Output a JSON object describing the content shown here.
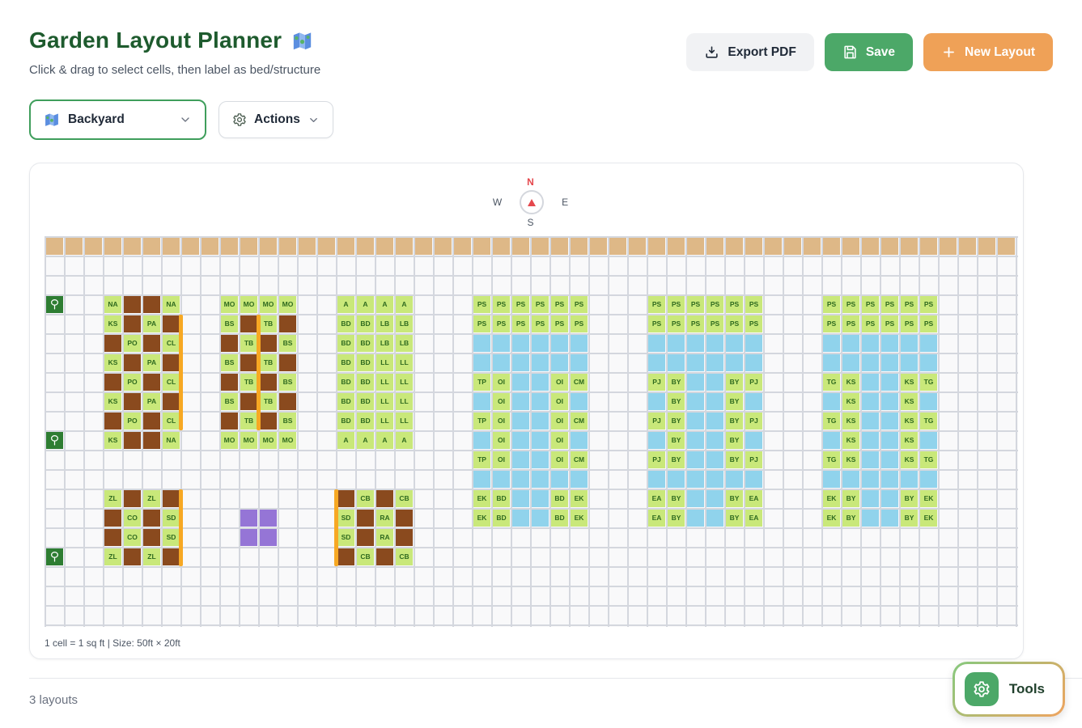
{
  "header": {
    "title": "Garden Layout Planner",
    "subtitle": "Click & drag to select cells, then label as bed/structure",
    "buttons": {
      "export_pdf": "Export PDF",
      "save": "Save",
      "new_layout": "New Layout"
    }
  },
  "toolbar": {
    "layout_selected": "Backyard",
    "actions_label": "Actions"
  },
  "compass": {
    "n": "N",
    "s": "S",
    "e": "E",
    "w": "W"
  },
  "canvas": {
    "footer": "1 cell = 1 sq ft | Size: 50ft × 20ft"
  },
  "status": {
    "layouts_count": "3 layouts"
  },
  "tools": {
    "label": "Tools"
  },
  "icons": {
    "title": "map-emoji",
    "export_pdf": "download",
    "save": "floppy-disk",
    "new_layout": "plus",
    "layout_select": "map-emoji",
    "actions": "gear",
    "tools": "gear",
    "tree_cell": "tree",
    "compass_needle": "red-triangle-up"
  },
  "colors": {
    "bed": "#c9e87a",
    "label": "#2f6a1f",
    "soil": "#8a4a1e",
    "water": "#90d3ec",
    "structure": "#9575d6",
    "soilband": "#deb887",
    "path": "#f7a823",
    "tree": "#2e7d32",
    "gridline": "#d4d7de",
    "accent_green": "#4ca868",
    "accent_orange": "#efa157"
  },
  "grid": {
    "cols": 50,
    "rows": 20,
    "soil_row": 0,
    "legend": {
      "#": "soil",
      "~": "water",
      "*": "structure",
      "text": "bed label"
    },
    "trees": [
      [
        0,
        3
      ],
      [
        0,
        10
      ],
      [
        0,
        16
      ]
    ],
    "clusters": [
      {
        "name": "bed-northwest",
        "col": 3,
        "row": 3,
        "rows": [
          [
            "NA",
            "#",
            "#",
            "NA"
          ],
          [
            "KS",
            "#",
            "PA",
            "#"
          ],
          [
            "#",
            "PO",
            "#",
            "CL"
          ],
          [
            "KS",
            "#",
            "PA",
            "#"
          ],
          [
            "#",
            "PO",
            "#",
            "CL"
          ],
          [
            "KS",
            "#",
            "PA",
            "#"
          ],
          [
            "#",
            "PO",
            "#",
            "CL"
          ],
          [
            "KS",
            "#",
            "#",
            "NA"
          ]
        ]
      },
      {
        "name": "bed-north-2",
        "col": 9,
        "row": 3,
        "rows": [
          [
            "MO",
            "MO",
            "MO",
            "MO"
          ],
          [
            "BS",
            "#",
            "TB",
            "#"
          ],
          [
            "#",
            "TB",
            "#",
            "BS"
          ],
          [
            "BS",
            "#",
            "TB",
            "#"
          ],
          [
            "#",
            "TB",
            "#",
            "BS"
          ],
          [
            "BS",
            "#",
            "TB",
            "#"
          ],
          [
            "#",
            "TB",
            "#",
            "BS"
          ],
          [
            "MO",
            "MO",
            "MO",
            "MO"
          ]
        ]
      },
      {
        "name": "bed-north-3",
        "col": 15,
        "row": 3,
        "rows": [
          [
            "A",
            "A",
            "A",
            "A"
          ],
          [
            "BD",
            "BD",
            "LB",
            "LB"
          ],
          [
            "BD",
            "BD",
            "LB",
            "LB"
          ],
          [
            "BD",
            "BD",
            "LL",
            "LL"
          ],
          [
            "BD",
            "BD",
            "LL",
            "LL"
          ],
          [
            "BD",
            "BD",
            "LL",
            "LL"
          ],
          [
            "BD",
            "BD",
            "LL",
            "LL"
          ],
          [
            "A",
            "A",
            "A",
            "A"
          ]
        ]
      },
      {
        "name": "bed-east-1",
        "col": 22,
        "row": 3,
        "rows": [
          [
            "PS",
            "PS",
            "PS",
            "PS",
            "PS",
            "PS"
          ],
          [
            "PS",
            "PS",
            "PS",
            "PS",
            "PS",
            "PS"
          ],
          [
            "~",
            "~",
            "~",
            "~",
            "~",
            "~"
          ],
          [
            "~",
            "~",
            "~",
            "~",
            "~",
            "~"
          ],
          [
            "TP",
            "OI",
            "~",
            "~",
            "OI",
            "CM"
          ],
          [
            "~",
            "OI",
            "~",
            "~",
            "OI",
            "~"
          ],
          [
            "TP",
            "OI",
            "~",
            "~",
            "OI",
            "CM"
          ],
          [
            "~",
            "OI",
            "~",
            "~",
            "OI",
            "~"
          ],
          [
            "TP",
            "OI",
            "~",
            "~",
            "OI",
            "CM"
          ],
          [
            "~",
            "~",
            "~",
            "~",
            "~",
            "~"
          ],
          [
            "EK",
            "BD",
            "~",
            "~",
            "BD",
            "EK"
          ],
          [
            "EK",
            "BD",
            "~",
            "~",
            "BD",
            "EK"
          ]
        ]
      },
      {
        "name": "bed-east-2",
        "col": 31,
        "row": 3,
        "rows": [
          [
            "PS",
            "PS",
            "PS",
            "PS",
            "PS",
            "PS"
          ],
          [
            "PS",
            "PS",
            "PS",
            "PS",
            "PS",
            "PS"
          ],
          [
            "~",
            "~",
            "~",
            "~",
            "~",
            "~"
          ],
          [
            "~",
            "~",
            "~",
            "~",
            "~",
            "~"
          ],
          [
            "PJ",
            "BY",
            "~",
            "~",
            "BY",
            "PJ"
          ],
          [
            "~",
            "BY",
            "~",
            "~",
            "BY",
            "~"
          ],
          [
            "PJ",
            "BY",
            "~",
            "~",
            "BY",
            "PJ"
          ],
          [
            "~",
            "BY",
            "~",
            "~",
            "BY",
            "~"
          ],
          [
            "PJ",
            "BY",
            "~",
            "~",
            "BY",
            "PJ"
          ],
          [
            "~",
            "~",
            "~",
            "~",
            "~",
            "~"
          ],
          [
            "EA",
            "BY",
            "~",
            "~",
            "BY",
            "EA"
          ],
          [
            "EA",
            "BY",
            "~",
            "~",
            "BY",
            "EA"
          ]
        ]
      },
      {
        "name": "bed-east-3",
        "col": 40,
        "row": 3,
        "rows": [
          [
            "PS",
            "PS",
            "PS",
            "PS",
            "PS",
            "PS"
          ],
          [
            "PS",
            "PS",
            "PS",
            "PS",
            "PS",
            "PS"
          ],
          [
            "~",
            "~",
            "~",
            "~",
            "~",
            "~"
          ],
          [
            "~",
            "~",
            "~",
            "~",
            "~",
            "~"
          ],
          [
            "TG",
            "KS",
            "~",
            "~",
            "KS",
            "TG"
          ],
          [
            "~",
            "KS",
            "~",
            "~",
            "KS",
            "~"
          ],
          [
            "TG",
            "KS",
            "~",
            "~",
            "KS",
            "TG"
          ],
          [
            "~",
            "KS",
            "~",
            "~",
            "KS",
            "~"
          ],
          [
            "TG",
            "KS",
            "~",
            "~",
            "KS",
            "TG"
          ],
          [
            "~",
            "~",
            "~",
            "~",
            "~",
            "~"
          ],
          [
            "EK",
            "BY",
            "~",
            "~",
            "BY",
            "EK"
          ],
          [
            "EK",
            "BY",
            "~",
            "~",
            "BY",
            "EK"
          ]
        ]
      },
      {
        "name": "bed-southwest",
        "col": 3,
        "row": 13,
        "rows": [
          [
            "ZL",
            "#",
            "ZL",
            "#"
          ],
          [
            "#",
            "CO",
            "#",
            "SD"
          ],
          [
            "#",
            "CO",
            "#",
            "SD"
          ],
          [
            "ZL",
            "#",
            "ZL",
            "#"
          ]
        ]
      },
      {
        "name": "structure-purple",
        "col": 10,
        "row": 14,
        "rows": [
          [
            "*",
            "*"
          ],
          [
            "*",
            "*"
          ]
        ]
      },
      {
        "name": "bed-south-2",
        "col": 15,
        "row": 13,
        "rows": [
          [
            "#",
            "CB",
            "#",
            "CB"
          ],
          [
            "SD",
            "#",
            "RA",
            "#"
          ],
          [
            "SD",
            "#",
            "RA",
            "#"
          ],
          [
            "#",
            "CB",
            "#",
            "CB"
          ]
        ]
      }
    ],
    "strips": [
      {
        "edge_col": 7,
        "row_start": 4,
        "row_end": 9
      },
      {
        "edge_col": 11,
        "row_start": 4,
        "row_end": 9
      },
      {
        "edge_col": 7,
        "row_start": 13,
        "row_end": 16
      },
      {
        "edge_col": 15,
        "row_start": 13,
        "row_end": 16
      }
    ]
  }
}
